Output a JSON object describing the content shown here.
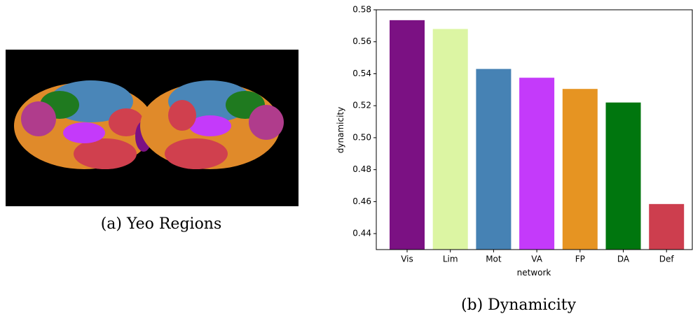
{
  "captions": [
    "(a) Yeo Regions",
    "(b) Dynamicity"
  ],
  "chart_data": {
    "type": "bar",
    "x_label": "network",
    "y_label": "dynamicity",
    "categories": [
      "Vis",
      "Lim",
      "Mot",
      "VA",
      "FP",
      "DA",
      "Def"
    ],
    "values": [
      0.5735,
      0.568,
      0.543,
      0.5375,
      0.5305,
      0.522,
      0.4585
    ],
    "colors": [
      "#7b1183",
      "#dcf5a3",
      "#4682b4",
      "#c43afa",
      "#e69422",
      "#00760e",
      "#cd3e4e"
    ],
    "ylim": [
      0.43,
      0.58
    ],
    "yticks": [
      0.44,
      0.46,
      0.48,
      {
        "value": 0.5,
        "label": "0.50"
      },
      0.52,
      0.54,
      0.56,
      0.58
    ],
    "grid": false
  }
}
